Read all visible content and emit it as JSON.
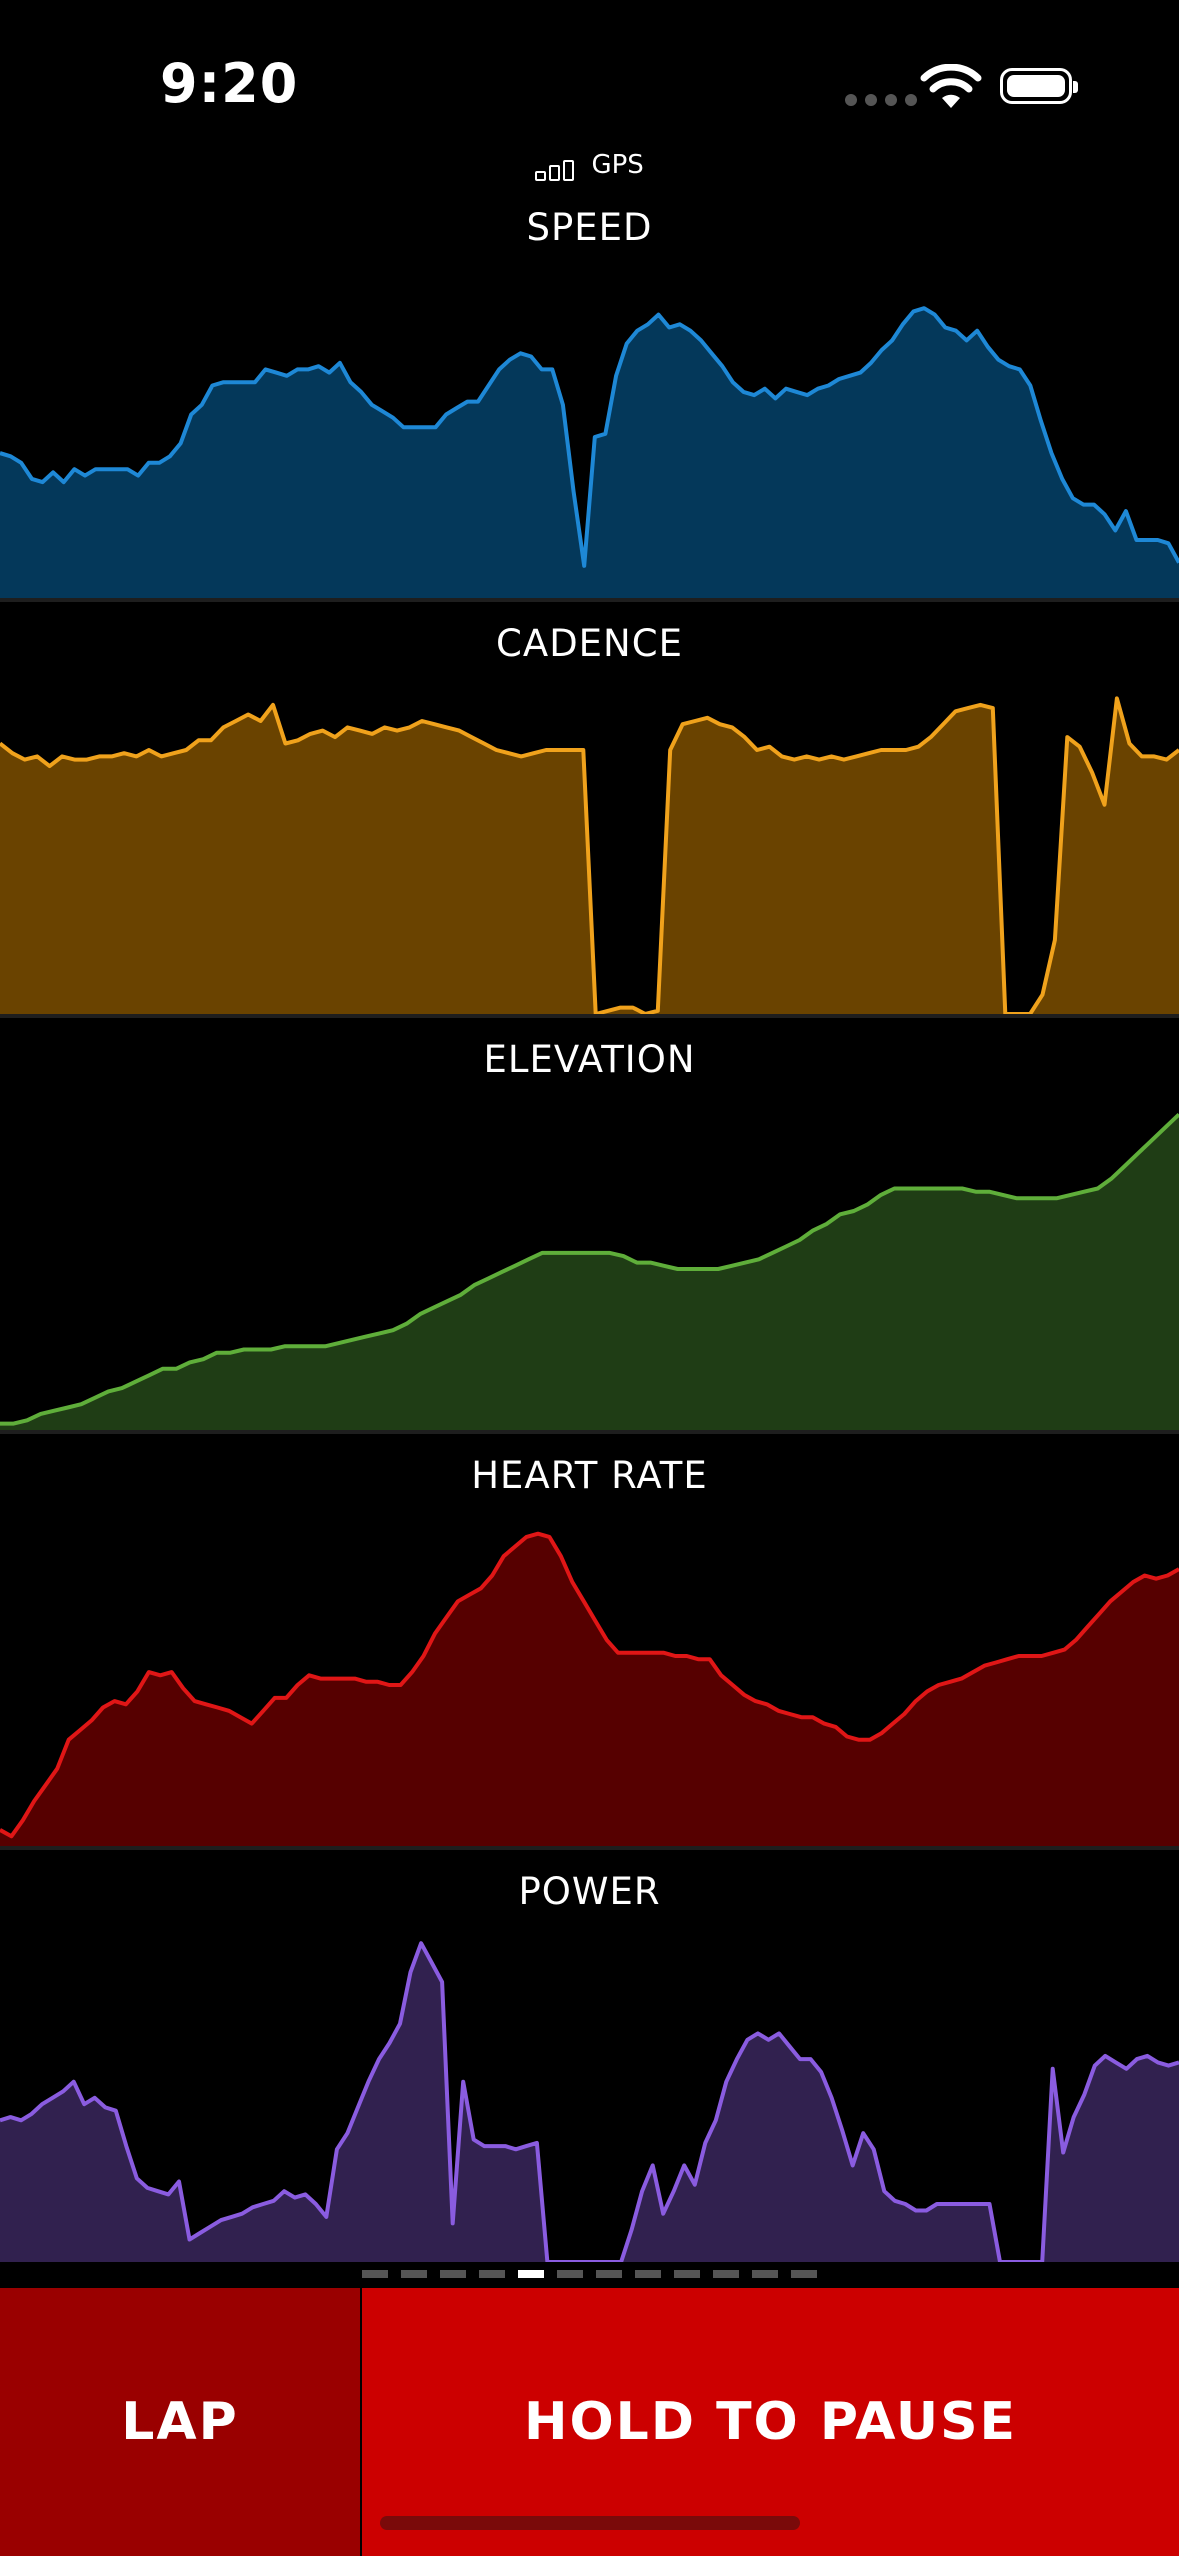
{
  "status": {
    "time": "9:20"
  },
  "gps": {
    "label": "GPS"
  },
  "colors": {
    "speed_line": "#1e88d6",
    "speed_fill": "#04385a",
    "cadence_line": "#f0a21c",
    "cadence_fill": "#6a4300",
    "elevation_line": "#5fae3a",
    "elevation_fill": "#1f3d15",
    "heart_line": "#e01616",
    "heart_fill": "#560000",
    "power_line": "#8a5ce0",
    "power_fill": "#31214f",
    "lap_bg": "#9a0000",
    "pause_bg": "#cc0000"
  },
  "panels": [
    {
      "title": "SPEED",
      "type": "area",
      "values": [
        45,
        44,
        42,
        37,
        36,
        39,
        36,
        40,
        38,
        40,
        40,
        40,
        40,
        38,
        42,
        42,
        44,
        48,
        57,
        60,
        66,
        67,
        67,
        67,
        67,
        71,
        70,
        69,
        71,
        71,
        72,
        70,
        73,
        67,
        64,
        60,
        58,
        56,
        53,
        53,
        53,
        53,
        57,
        59,
        61,
        61,
        66,
        71,
        74,
        76,
        75,
        71,
        71,
        60,
        33,
        10,
        50,
        51,
        69,
        79,
        83,
        85,
        88,
        84,
        85,
        83,
        80,
        76,
        72,
        67,
        64,
        63,
        65,
        62,
        65,
        64,
        63,
        65,
        66,
        68,
        69,
        70,
        73,
        77,
        80,
        85,
        89,
        90,
        88,
        84,
        83,
        80,
        83,
        78,
        74,
        72,
        71,
        66,
        55,
        45,
        37,
        31,
        29,
        29,
        26,
        21,
        27,
        18,
        18,
        18,
        17,
        11
      ],
      "ylim": [
        0,
        100
      ]
    },
    {
      "title": "CADENCE",
      "type": "area",
      "values": [
        84,
        81,
        79,
        80,
        77,
        80,
        79,
        79,
        80,
        80,
        81,
        80,
        82,
        80,
        81,
        82,
        85,
        85,
        89,
        91,
        93,
        91,
        96,
        84,
        85,
        87,
        88,
        86,
        89,
        88,
        87,
        89,
        88,
        89,
        91,
        90,
        89,
        88,
        86,
        84,
        82,
        81,
        80,
        81,
        82,
        82,
        82,
        82,
        0,
        1,
        2,
        2,
        0,
        1,
        82,
        90,
        91,
        92,
        90,
        89,
        86,
        82,
        83,
        80,
        79,
        80,
        79,
        80,
        79,
        80,
        81,
        82,
        82,
        82,
        83,
        86,
        90,
        94,
        95,
        96,
        95,
        0,
        0,
        0,
        6,
        23,
        86,
        83,
        75,
        65,
        98,
        84,
        80,
        80,
        79,
        82
      ],
      "ylim": [
        0,
        100
      ]
    },
    {
      "title": "ELEVATION",
      "type": "area",
      "values": [
        2,
        2,
        3,
        5,
        6,
        7,
        8,
        10,
        12,
        13,
        15,
        17,
        19,
        19,
        21,
        22,
        24,
        24,
        25,
        25,
        25,
        26,
        26,
        26,
        26,
        27,
        28,
        29,
        30,
        31,
        33,
        36,
        38,
        40,
        42,
        45,
        47,
        49,
        51,
        53,
        55,
        55,
        55,
        55,
        55,
        55,
        54,
        52,
        52,
        51,
        50,
        50,
        50,
        50,
        51,
        52,
        53,
        55,
        57,
        59,
        62,
        64,
        67,
        68,
        70,
        73,
        75,
        75,
        75,
        75,
        75,
        75,
        74,
        74,
        73,
        72,
        72,
        72,
        72,
        73,
        74,
        75,
        78,
        82,
        86,
        90,
        94,
        98
      ],
      "ylim": [
        0,
        100
      ]
    },
    {
      "title": "HEART RATE",
      "type": "area",
      "values": [
        5,
        3,
        8,
        14,
        19,
        24,
        33,
        36,
        39,
        43,
        45,
        44,
        48,
        54,
        53,
        54,
        49,
        45,
        44,
        43,
        42,
        40,
        38,
        42,
        46,
        46,
        50,
        53,
        52,
        52,
        52,
        52,
        51,
        51,
        50,
        50,
        54,
        59,
        66,
        71,
        76,
        78,
        80,
        84,
        90,
        93,
        96,
        97,
        96,
        90,
        82,
        76,
        70,
        64,
        60,
        60,
        60,
        60,
        60,
        59,
        59,
        58,
        58,
        53,
        50,
        47,
        45,
        44,
        42,
        41,
        40,
        40,
        38,
        37,
        34,
        33,
        33,
        35,
        38,
        41,
        45,
        48,
        50,
        51,
        52,
        54,
        56,
        57,
        58,
        59,
        59,
        59,
        60,
        61,
        64,
        68,
        72,
        76,
        79,
        82,
        84,
        83,
        84,
        86
      ],
      "ylim": [
        0,
        100
      ]
    },
    {
      "title": "POWER",
      "type": "area",
      "values": [
        44,
        45,
        44,
        46,
        49,
        51,
        53,
        56,
        49,
        51,
        48,
        47,
        36,
        26,
        23,
        22,
        21,
        25,
        7,
        9,
        11,
        13,
        14,
        15,
        17,
        18,
        19,
        22,
        20,
        21,
        18,
        14,
        35,
        40,
        48,
        56,
        63,
        68,
        74,
        90,
        99,
        93,
        87,
        12,
        56,
        38,
        36,
        36,
        36,
        35,
        36,
        37,
        0,
        0,
        0,
        0,
        0,
        0,
        0,
        0,
        10,
        22,
        30,
        15,
        22,
        30,
        24,
        37,
        44,
        56,
        63,
        69,
        71,
        69,
        71,
        67,
        63,
        63,
        59,
        51,
        41,
        30,
        40,
        35,
        22,
        19,
        18,
        16,
        16,
        18,
        18,
        18,
        18,
        18,
        18,
        0,
        0,
        0,
        0,
        0,
        60,
        34,
        45,
        52,
        61,
        64,
        62,
        60,
        63,
        64,
        62,
        61,
        62
      ],
      "ylim": [
        0,
        100
      ]
    }
  ],
  "pager": {
    "count": 12,
    "active": 4
  },
  "buttons": {
    "lap": "LAP",
    "pause": "HOLD TO PAUSE"
  }
}
